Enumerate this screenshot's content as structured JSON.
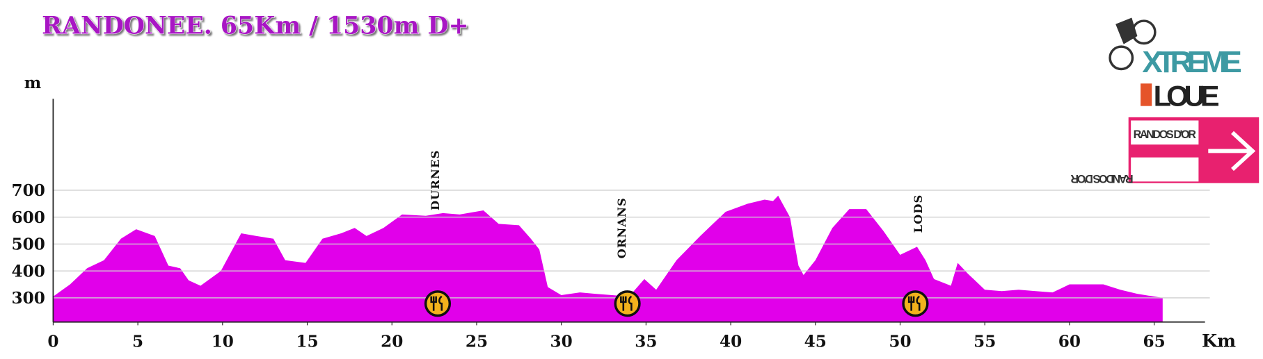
{
  "chart_data": {
    "type": "area",
    "title": "RANDONEE. 65Km / 1530m D+",
    "y_label": "m",
    "x_label": "Km",
    "color": "#e100ea",
    "xlim": [
      0,
      68
    ],
    "ylim": [
      210,
      1040
    ],
    "xticks": [
      0,
      5,
      10,
      15,
      20,
      25,
      30,
      35,
      40,
      45,
      50,
      55,
      60,
      65
    ],
    "yticks": [
      300,
      400,
      500,
      600,
      700
    ],
    "grid": true,
    "x": [
      0,
      1,
      2,
      3,
      4,
      4.9,
      6,
      6.8,
      7.5,
      8,
      8.7,
      9.9,
      11.1,
      12,
      13,
      13.7,
      14.9,
      15.9,
      17,
      17.8,
      18.5,
      19.5,
      20.6,
      22,
      23,
      24,
      25.4,
      26.3,
      27.5,
      28.2,
      28.7,
      29.2,
      30,
      31.1,
      32,
      33,
      34,
      34.9,
      35.6,
      36.8,
      38.2,
      39.7,
      41,
      42,
      42.5,
      42.8,
      43.5,
      44,
      44.3,
      45,
      46,
      47,
      48,
      49,
      50,
      51,
      51.5,
      52,
      53,
      53.4,
      54,
      55,
      56,
      57,
      58,
      59,
      60,
      61,
      62,
      63,
      64,
      65,
      65.5
    ],
    "values": [
      305,
      350,
      410,
      440,
      520,
      555,
      530,
      420,
      410,
      365,
      345,
      400,
      540,
      530,
      520,
      440,
      430,
      520,
      540,
      560,
      530,
      560,
      610,
      605,
      615,
      610,
      625,
      575,
      570,
      520,
      480,
      340,
      310,
      320,
      315,
      310,
      305,
      370,
      330,
      440,
      530,
      620,
      650,
      665,
      660,
      680,
      600,
      420,
      385,
      440,
      560,
      630,
      630,
      550,
      460,
      490,
      440,
      370,
      345,
      430,
      390,
      330,
      325,
      330,
      325,
      320,
      350,
      350,
      350,
      330,
      315,
      305,
      300
    ],
    "annotations": [
      {
        "text": "DURNES",
        "x": 22.5
      },
      {
        "text": "ORNANS",
        "x": 33.5
      },
      {
        "text": "LODS",
        "x": 51
      }
    ],
    "food_stops": [
      22.7,
      33.9,
      50.9
    ]
  },
  "logo": {
    "line1": "XTREME",
    "line2": "LOUE",
    "sign": "RANDOS D'OR"
  }
}
